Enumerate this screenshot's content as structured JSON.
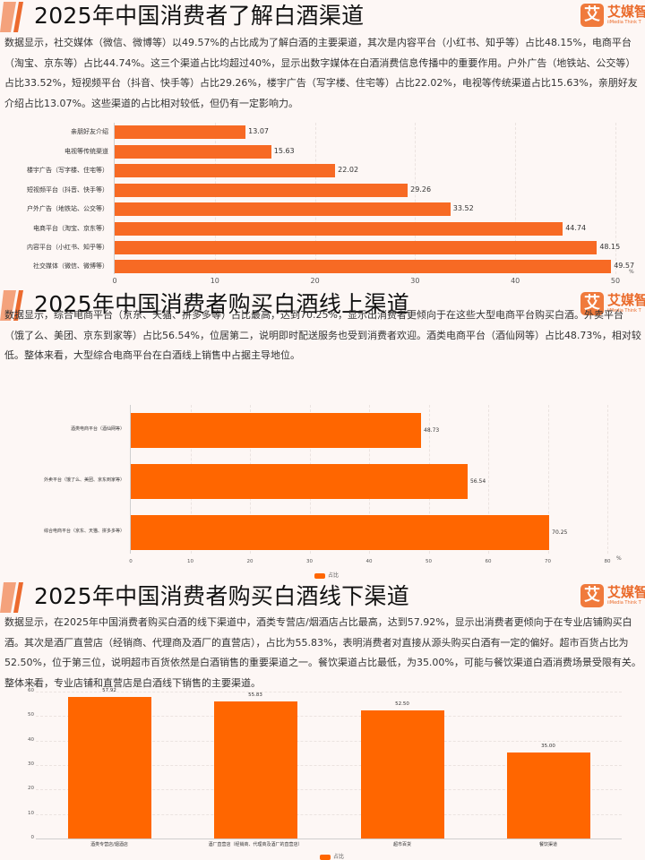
{
  "brand": {
    "logo_glyph": "艾",
    "name": "艾媒智",
    "subtitle": "iiMedia Think T",
    "color": "#ea6a2a"
  },
  "sections": [
    {
      "title": "2025年中国消费者了解白酒渠道",
      "description": "数据显示，社交媒体（微信、微博等）以49.57%的占比成为了解白酒的主要渠道，其次是内容平台（小红书、知乎等）占比48.15%，电商平台（淘宝、京东等）占比44.74%。这三个渠道占比均超过40%，显示出数字媒体在白酒消费信息传播中的重要作用。户外广告（地铁站、公交等）占比33.52%，短视频平台（抖音、快手等）占比29.26%，楼宇广告（写字楼、住宅等）占比22.02%，电视等传统渠道占比15.63%，亲朋好友介绍占比13.07%。这些渠道的占比相对较低，但仍有一定影响力。"
    },
    {
      "title": "2025年中国消费者购买白酒线上渠道",
      "description": "数据显示，综合电商平台（京东、天猫、拼多多等）占比最高，达到70.25%，显示出消费者更倾向于在这些大型电商平台购买白酒。外卖平台（饿了么、美团、京东到家等）占比56.54%，位居第二，说明即时配送服务也受到消费者欢迎。酒类电商平台（酒仙网等）占比48.73%，相对较低。整体来看，大型综合电商平台在白酒线上销售中占据主导地位。"
    },
    {
      "title": "2025年中国消费者购买白酒线下渠道",
      "description": "数据显示，在2025年中国消费者购买白酒的线下渠道中，酒类专营店/烟酒店占比最高，达到57.92%，显示出消费者更倾向于在专业店铺购买白酒。其次是酒厂直营店（经销商、代理商及酒厂的直营店），占比为55.83%，表明消费者对直接从源头购买白酒有一定的偏好。超市百货占比为52.50%，位于第三位，说明超市百货依然是白酒销售的重要渠道之一。餐饮渠道占比最低，为35.00%，可能与餐饮渠道白酒消费场景受限有关。整体来看，专业店铺和直营店是白酒线下销售的主要渠道。"
    }
  ],
  "chart_data": [
    {
      "type": "bar",
      "orientation": "horizontal",
      "title": "2025年中国消费者了解白酒渠道",
      "categories": [
        "亲朋好友介绍",
        "电视等传统渠道",
        "楼宇广告（写字楼、住宅等）",
        "短视频平台（抖音、快手等）",
        "户外广告（地铁站、公交等）",
        "电商平台（淘宝、京东等）",
        "内容平台（小红书、知乎等）",
        "社交媒体（微信、微博等）"
      ],
      "values": [
        13.07,
        15.63,
        22.02,
        29.26,
        33.52,
        44.74,
        48.15,
        49.57
      ],
      "value_labels": [
        "13.07",
        "15.63",
        "22.02",
        "29.26",
        "33.52",
        "44.74",
        "48.15",
        "49.57"
      ],
      "xlabel": "",
      "ylabel": "",
      "unit": "%",
      "xlim": [
        0,
        50
      ],
      "ticks": [
        "0",
        "10",
        "20",
        "30",
        "40",
        "50"
      ],
      "grid": true,
      "color": "#f76a24"
    },
    {
      "type": "bar",
      "orientation": "horizontal",
      "title": "2025年中国消费者购买白酒线上渠道",
      "categories": [
        "酒类电商平台（酒仙网等）",
        "外卖平台（饿了么、美团、京东到家等）",
        "综合电商平台（京东、天猫、拼多多等）"
      ],
      "values": [
        48.73,
        56.54,
        70.25
      ],
      "value_labels": [
        "48.73",
        "56.54",
        "70.25"
      ],
      "xlabel": "",
      "ylabel": "",
      "unit": "%",
      "xlim": [
        0,
        80
      ],
      "ticks": [
        "0",
        "10",
        "20",
        "30",
        "40",
        "50",
        "60",
        "70",
        "80"
      ],
      "grid": true,
      "legend": [
        "占比"
      ],
      "legend_position": "bottom",
      "color": "#ff6600"
    },
    {
      "type": "bar",
      "orientation": "vertical",
      "title": "2025年中国消费者购买白酒线下渠道",
      "categories": [
        "酒类专营店/烟酒店",
        "酒厂直营店（经销商、代理商及酒厂的直营店）",
        "超市百货",
        "餐饮渠道"
      ],
      "values": [
        57.92,
        55.83,
        52.5,
        35.0
      ],
      "value_labels": [
        "57.92",
        "55.83",
        "52.50",
        "35.00"
      ],
      "xlabel": "",
      "ylabel": "%",
      "unit": "%",
      "ylim": [
        0,
        60
      ],
      "ticks": [
        "0",
        "10",
        "20",
        "30",
        "40",
        "50",
        "60"
      ],
      "grid": true,
      "legend": [
        "占比"
      ],
      "legend_position": "bottom",
      "color": "#ff6600"
    }
  ]
}
